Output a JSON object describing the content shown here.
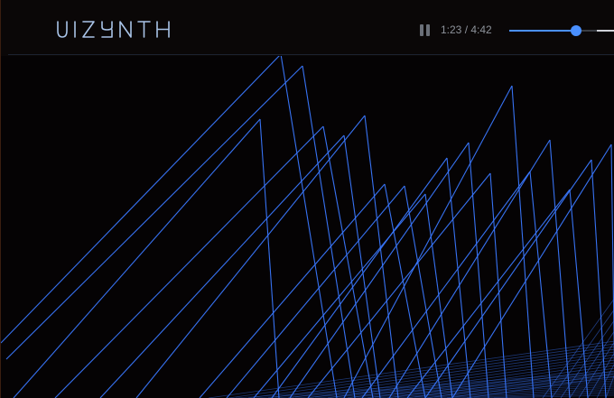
{
  "app": {
    "name": "VIZYNTH",
    "logo_icon": "vizynth-wordmark"
  },
  "player": {
    "state": "playing",
    "pause_icon": "pause-icon",
    "current_time": "1:23",
    "duration": "4:42",
    "time_label": "1:23 / 4:42",
    "progress_fraction": 0.294
  },
  "colors": {
    "background": "#050304",
    "accent": "#4a90ff",
    "visual_line": "#3a78ff",
    "logo": "#a9c4e8",
    "text_muted": "#8d929a"
  },
  "visualizer": {
    "style": "wireframe-spike-field"
  }
}
